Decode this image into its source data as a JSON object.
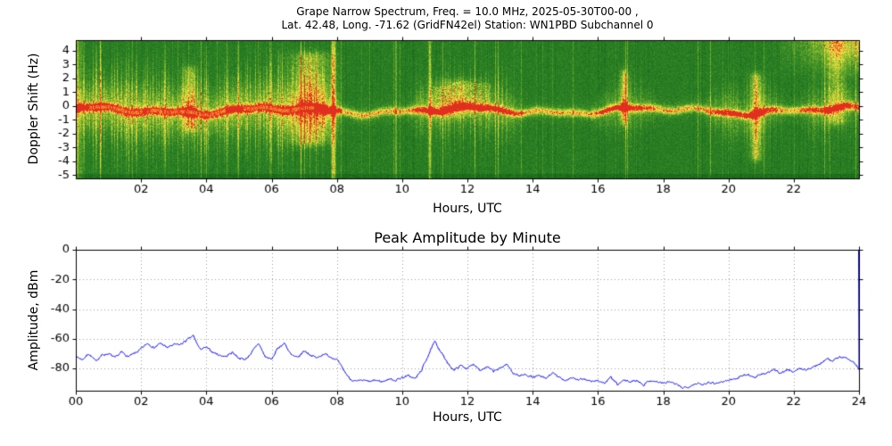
{
  "figure": {
    "background": "#ffffff",
    "axis_color": "#000000",
    "grid_color": "#999999"
  },
  "chart_data": [
    {
      "type": "heatmap",
      "title_line1": "Grape Narrow Spectrum, Freq. = 10.0 MHz, 2025-05-30T00-00 ,",
      "title_line2": "Lat.  42.48, Long. -71.62 (GridFN42el) Station: WN1PBD Subchannel 0",
      "xlabel": "Hours, UTC",
      "ylabel": "Doppler Shift (Hz)",
      "xlim": [
        0,
        24
      ],
      "ylim": [
        -5.25,
        4.75
      ],
      "xticks": [
        2,
        4,
        6,
        8,
        10,
        12,
        14,
        16,
        18,
        20,
        22
      ],
      "xtick_labels": [
        "02",
        "04",
        "06",
        "08",
        "10",
        "12",
        "14",
        "16",
        "18",
        "20",
        "22"
      ],
      "yticks": [
        4,
        3,
        2,
        1,
        0,
        -1,
        -2,
        -3,
        -4,
        -5
      ],
      "ytick_labels": [
        "4",
        "3",
        "2",
        "1",
        "0",
        "-1",
        "-2",
        "-3",
        "-4",
        "-5"
      ],
      "colormap": [
        {
          "pos": 0.0,
          "color": "#0a4a0a"
        },
        {
          "pos": 0.3,
          "color": "#196619"
        },
        {
          "pos": 0.5,
          "color": "#2f8526"
        },
        {
          "pos": 0.65,
          "color": "#6aa92c"
        },
        {
          "pos": 0.78,
          "color": "#b9cf33"
        },
        {
          "pos": 0.88,
          "color": "#ffe84d"
        },
        {
          "pos": 0.94,
          "color": "#ff9d2e"
        },
        {
          "pos": 1.0,
          "color": "#e02f1f"
        }
      ],
      "features": {
        "trace_center_hz": -0.35,
        "red_segments": [
          [
            0.4,
            4.6
          ],
          [
            5.1,
            7.3
          ]
        ],
        "vertical_streaks": [
          {
            "t": 7.9,
            "amp": 0.5,
            "w": 0.05
          },
          {
            "t": 10.85,
            "amp": 0.4,
            "w": 0.03
          }
        ],
        "active_regions": [
          [
            0,
            7.9,
            1.0
          ],
          [
            10.4,
            13.5,
            0.6
          ],
          [
            16.0,
            17.6,
            0.45
          ],
          [
            19.5,
            21.5,
            0.5
          ],
          [
            22.3,
            24,
            0.45
          ]
        ],
        "plumes": [
          {
            "t": 3.5,
            "w": 0.15,
            "f0": -1.5,
            "f1": 2.5,
            "a": 0.3
          },
          {
            "t": 7.2,
            "w": 0.45,
            "f0": -2.5,
            "f1": 3.5,
            "a": 0.35
          },
          {
            "t": 11.6,
            "w": 0.5,
            "f0": -0.5,
            "f1": 1.6,
            "a": 0.22
          },
          {
            "t": 16.8,
            "w": 0.08,
            "f0": -1.0,
            "f1": 2.2,
            "a": 0.45
          },
          {
            "t": 20.85,
            "w": 0.12,
            "f0": -3.6,
            "f1": 2.0,
            "a": 0.45
          },
          {
            "t": 23.3,
            "w": 0.2,
            "f0": -1.0,
            "f1": 4.6,
            "a": 0.28
          }
        ],
        "noise_seed": 42
      }
    },
    {
      "type": "line",
      "title": "Peak Amplitude by Minute",
      "xlabel": "Hours, UTC",
      "ylabel": "Amplitude, dBm",
      "xlim": [
        0,
        24
      ],
      "ylim": [
        -95,
        0
      ],
      "xticks": [
        0,
        2,
        4,
        6,
        8,
        10,
        12,
        14,
        16,
        18,
        20,
        22,
        24
      ],
      "xtick_labels": [
        "00",
        "02",
        "04",
        "06",
        "08",
        "10",
        "12",
        "14",
        "16",
        "18",
        "20",
        "22",
        "24"
      ],
      "yticks": [
        0,
        -20,
        -40,
        -60,
        -80
      ],
      "ytick_labels": [
        "0",
        "-20",
        "-40",
        "-60",
        "-80"
      ],
      "line_color": "#0000ff",
      "grid": true,
      "x_start": 0,
      "x_step": 0.2,
      "y": [
        -72,
        -74,
        -70,
        -75,
        -71,
        -70,
        -73,
        -69,
        -72,
        -70,
        -67,
        -63,
        -66,
        -63,
        -66,
        -64,
        -64,
        -61,
        -58,
        -67,
        -66,
        -69,
        -71,
        -72,
        -69,
        -73,
        -74,
        -69,
        -63,
        -72,
        -74,
        -66,
        -63,
        -71,
        -73,
        -68,
        -71,
        -73,
        -70,
        -72,
        -74,
        -81,
        -87,
        -89,
        -88,
        -89,
        -88,
        -89,
        -87,
        -88,
        -86,
        -85,
        -87,
        -81,
        -71,
        -62,
        -69,
        -77,
        -81,
        -78,
        -80,
        -77,
        -81,
        -79,
        -82,
        -80,
        -77,
        -83,
        -85,
        -84,
        -86,
        -85,
        -87,
        -83,
        -86,
        -88,
        -86,
        -88,
        -87,
        -89,
        -88,
        -90,
        -86,
        -91,
        -88,
        -89,
        -88,
        -91,
        -88,
        -89,
        -90,
        -89,
        -91,
        -93,
        -92,
        -90,
        -91,
        -89,
        -90,
        -89,
        -88,
        -87,
        -85,
        -84,
        -86,
        -84,
        -83,
        -81,
        -83,
        -81,
        -82,
        -80,
        -81,
        -79,
        -77,
        -73,
        -75,
        -72,
        -73,
        -75,
        -80
      ],
      "edge_spike_to_dbm": 0,
      "noise_seed": 7
    }
  ]
}
